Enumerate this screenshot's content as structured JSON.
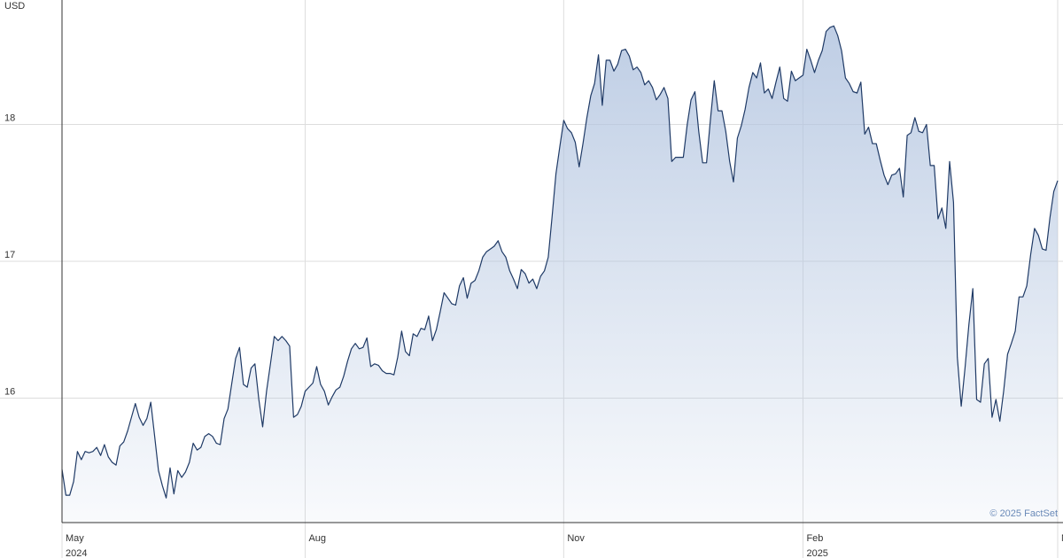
{
  "chart_data": {
    "type": "area",
    "y_label": "USD",
    "source": "© 2025 FactSet",
    "color": "#1f3a66",
    "fill_color": "#b3c5e0",
    "grid": true,
    "ylim": [
      15.09,
      18.91
    ],
    "yticks": [
      16,
      17,
      18
    ],
    "xlim": [
      0,
      258
    ],
    "xticks": [
      {
        "value": 0,
        "label": "May"
      },
      {
        "value": 63,
        "label": "Aug"
      },
      {
        "value": 130,
        "label": "Nov"
      },
      {
        "value": 192,
        "label": "Feb"
      },
      {
        "value": 258,
        "label": "May"
      }
    ],
    "year_labels": [
      {
        "value": 0,
        "label": "2024"
      },
      {
        "value": 192,
        "label": "2025"
      }
    ],
    "values": [
      15.48,
      15.29,
      15.29,
      15.39,
      15.61,
      15.55,
      15.61,
      15.6,
      15.61,
      15.64,
      15.58,
      15.66,
      15.57,
      15.53,
      15.51,
      15.65,
      15.68,
      15.76,
      15.86,
      15.96,
      15.86,
      15.8,
      15.85,
      15.97,
      15.72,
      15.47,
      15.36,
      15.27,
      15.49,
      15.3,
      15.47,
      15.42,
      15.46,
      15.53,
      15.67,
      15.62,
      15.64,
      15.72,
      15.74,
      15.72,
      15.67,
      15.66,
      15.85,
      15.92,
      16.11,
      16.29,
      16.37,
      16.1,
      16.08,
      16.22,
      16.25,
      15.99,
      15.79,
      16.05,
      16.25,
      16.45,
      16.42,
      16.45,
      16.42,
      16.38,
      15.86,
      15.88,
      15.94,
      16.05,
      16.08,
      16.11,
      16.23,
      16.1,
      16.05,
      15.95,
      16.01,
      16.06,
      16.08,
      16.16,
      16.27,
      16.36,
      16.4,
      16.36,
      16.37,
      16.44,
      16.23,
      16.25,
      16.24,
      16.2,
      16.18,
      16.18,
      16.17,
      16.3,
      16.49,
      16.34,
      16.31,
      16.47,
      16.45,
      16.51,
      16.5,
      16.6,
      16.42,
      16.5,
      16.63,
      16.77,
      16.73,
      16.69,
      16.68,
      16.82,
      16.88,
      16.73,
      16.84,
      16.86,
      16.93,
      17.03,
      17.07,
      17.09,
      17.11,
      17.15,
      17.07,
      17.03,
      16.93,
      16.87,
      16.8,
      16.94,
      16.91,
      16.84,
      16.87,
      16.8,
      16.89,
      16.93,
      17.03,
      17.33,
      17.64,
      17.84,
      18.03,
      17.97,
      17.94,
      17.87,
      17.69,
      17.86,
      18.05,
      18.21,
      18.3,
      18.51,
      18.14,
      18.47,
      18.47,
      18.39,
      18.44,
      18.54,
      18.55,
      18.5,
      18.4,
      18.42,
      18.38,
      18.29,
      18.32,
      18.27,
      18.18,
      18.22,
      18.27,
      18.19,
      17.73,
      17.76,
      17.76,
      17.76,
      18.0,
      18.18,
      18.24,
      17.95,
      17.72,
      17.72,
      18.03,
      18.32,
      18.1,
      18.1,
      17.95,
      17.73,
      17.58,
      17.9,
      17.99,
      18.11,
      18.27,
      18.38,
      18.34,
      18.45,
      18.23,
      18.26,
      18.19,
      18.31,
      18.42,
      18.19,
      18.17,
      18.39,
      18.32,
      18.34,
      18.36,
      18.55,
      18.47,
      18.38,
      18.47,
      18.54,
      18.68,
      18.71,
      18.72,
      18.65,
      18.54,
      18.34,
      18.3,
      18.24,
      18.23,
      18.31,
      17.93,
      17.98,
      17.86,
      17.86,
      17.74,
      17.63,
      17.56,
      17.63,
      17.64,
      17.68,
      17.47,
      17.92,
      17.94,
      18.05,
      17.95,
      17.94,
      18.0,
      17.7,
      17.7,
      17.31,
      17.39,
      17.24,
      17.73,
      17.43,
      16.3,
      15.94,
      16.22,
      16.54,
      16.8,
      15.99,
      15.97,
      16.25,
      16.29,
      15.86,
      15.99,
      15.83,
      16.05,
      16.32,
      16.4,
      16.49,
      16.74,
      16.74,
      16.82,
      17.05,
      17.24,
      17.19,
      17.09,
      17.08,
      17.32,
      17.51,
      17.59
    ]
  }
}
